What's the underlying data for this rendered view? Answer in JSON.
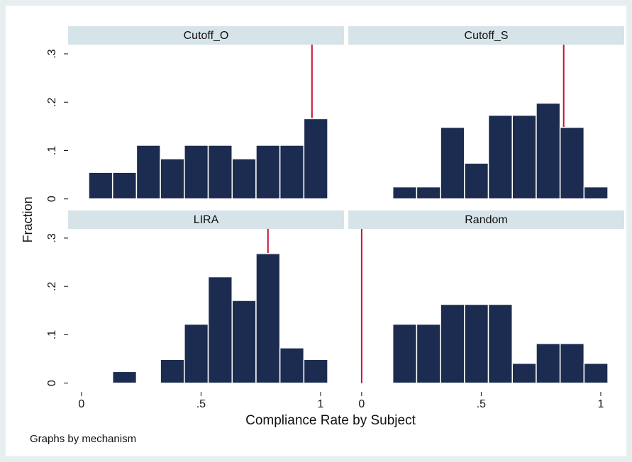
{
  "ylabel": "Fraction",
  "xlabel": "Compliance Rate by Subject",
  "note": "Graphs by mechanism",
  "chart_data": [
    {
      "type": "histogram",
      "title": "Cutoff_O",
      "color": "#1c2b50",
      "bins": [
        0.03,
        0.13,
        0.23,
        0.33,
        0.43,
        0.53,
        0.63,
        0.73,
        0.83,
        0.93,
        1.03
      ],
      "values": [
        0.055,
        0.055,
        0.111,
        0.083,
        0.111,
        0.111,
        0.083,
        0.111,
        0.111,
        0.166
      ],
      "reference_line": {
        "value": 0.964,
        "color": "#c8143c"
      },
      "xlim": [
        -0.056,
        1.098
      ],
      "ylim": [
        -0.018,
        0.319
      ],
      "yticks": [
        0,
        {
          "value": 0.1,
          "label": ".1"
        },
        {
          "value": 0.2,
          "label": ".2"
        },
        {
          "value": 0.3,
          "label": ".3"
        }
      ]
    },
    {
      "type": "histogram",
      "title": "Cutoff_S",
      "color": "#1c2b50",
      "bins": [
        0.13,
        0.23,
        0.33,
        0.43,
        0.53,
        0.63,
        0.73,
        0.83,
        0.93,
        1.03
      ],
      "values": [
        0.025,
        0.025,
        0.148,
        0.074,
        0.173,
        0.173,
        0.198,
        0.148,
        0.025
      ],
      "reference_line": {
        "value": 0.845,
        "color": "#c8143c"
      },
      "xlim": [
        -0.056,
        1.098
      ],
      "ylim": [
        -0.018,
        0.319
      ]
    },
    {
      "type": "histogram",
      "title": "LIRA",
      "color": "#1c2b50",
      "bins": [
        0.03,
        0.13,
        0.23,
        0.33,
        0.43,
        0.53,
        0.63,
        0.73,
        0.83,
        0.93,
        1.03
      ],
      "values": [
        0,
        0.024,
        0,
        0.049,
        0.122,
        0.22,
        0.171,
        0.268,
        0.073,
        0.049
      ],
      "reference_line": {
        "value": 0.78,
        "color": "#c8143c"
      },
      "xlim": [
        -0.056,
        1.098
      ],
      "ylim": [
        -0.018,
        0.319
      ],
      "xticks": [
        0,
        {
          "value": 0.5,
          "label": ".5"
        },
        1
      ],
      "yticks": [
        0,
        {
          "value": 0.1,
          "label": ".1"
        },
        {
          "value": 0.2,
          "label": ".2"
        },
        {
          "value": 0.3,
          "label": ".3"
        }
      ]
    },
    {
      "type": "histogram",
      "title": "Random",
      "color": "#1c2b50",
      "bins": [
        0.13,
        0.23,
        0.33,
        0.43,
        0.53,
        0.63,
        0.73,
        0.83,
        0.93,
        1.03
      ],
      "values": [
        0.122,
        0.122,
        0.163,
        0.163,
        0.163,
        0.041,
        0.082,
        0.082,
        0.041
      ],
      "reference_line": {
        "value": 0,
        "color": "#c8143c"
      },
      "xlim": [
        -0.056,
        1.098
      ],
      "ylim": [
        -0.018,
        0.319
      ],
      "xticks": [
        0,
        {
          "value": 0.5,
          "label": ".5"
        },
        1
      ]
    }
  ]
}
